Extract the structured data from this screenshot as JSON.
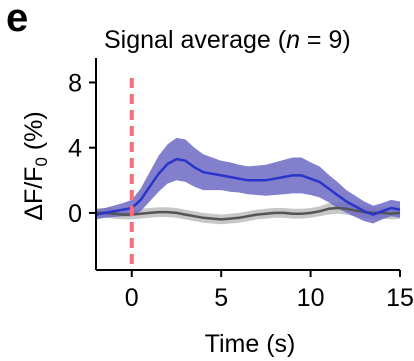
{
  "panel_label": "e",
  "title": {
    "prefix": "Signal average (",
    "n_symbol": "n",
    "suffix": " = 9)"
  },
  "chart_data": {
    "type": "line",
    "title": "Signal average (n = 9)",
    "xlabel": "Time (s)",
    "ylabel": "ΔF/F0 (%)",
    "ylabel_parts": {
      "delta": "ΔF/F",
      "sub": "0",
      "unit": " (%)"
    },
    "xlim": [
      -2,
      15
    ],
    "ylim": [
      -3.5,
      9.5
    ],
    "x_ticks": [
      0,
      5,
      10,
      15
    ],
    "x_tick_labels": [
      "0",
      "5",
      "10",
      "15"
    ],
    "y_ticks": [
      0,
      4,
      8
    ],
    "y_tick_labels": [
      "0",
      "4",
      "8"
    ],
    "grid": false,
    "legend": "none",
    "stimulus_line": {
      "x": 0,
      "color": "#ff6b7a",
      "style": "dashed"
    },
    "series": [
      {
        "color": "#2a34c8",
        "band_color": "#6c68c4",
        "x": [
          -2,
          -1.5,
          -1,
          -0.5,
          0,
          0.5,
          1,
          1.5,
          2,
          2.5,
          3,
          3.5,
          4,
          4.5,
          5,
          5.5,
          6,
          6.5,
          7,
          7.5,
          8,
          8.5,
          9,
          9.5,
          10,
          10.5,
          11,
          11.5,
          12,
          12.5,
          13,
          13.5,
          14,
          14.5,
          15
        ],
        "y": [
          -0.1,
          0.0,
          0.1,
          0.2,
          0.3,
          0.8,
          1.6,
          2.4,
          3.0,
          3.3,
          3.2,
          2.8,
          2.5,
          2.4,
          2.3,
          2.2,
          2.1,
          2.0,
          2.0,
          2.0,
          2.1,
          2.2,
          2.3,
          2.3,
          2.1,
          1.9,
          1.5,
          1.1,
          0.7,
          0.4,
          0.1,
          -0.1,
          0.1,
          0.3,
          0.2
        ],
        "err": [
          0.3,
          0.3,
          0.35,
          0.4,
          0.5,
          0.7,
          0.9,
          1.1,
          1.2,
          1.3,
          1.3,
          1.2,
          1.1,
          1.0,
          0.9,
          0.9,
          0.85,
          0.85,
          0.9,
          0.95,
          1.0,
          1.05,
          1.1,
          1.1,
          1.0,
          0.95,
          0.85,
          0.8,
          0.7,
          0.65,
          0.6,
          0.55,
          0.5,
          0.5,
          0.5
        ]
      },
      {
        "color": "#555555",
        "band_color": "#bdbdbd",
        "x": [
          -2,
          -1.5,
          -1,
          -0.5,
          0,
          0.5,
          1,
          1.5,
          2,
          2.5,
          3,
          3.5,
          4,
          4.5,
          5,
          5.5,
          6,
          6.5,
          7,
          7.5,
          8,
          8.5,
          9,
          9.5,
          10,
          10.5,
          11,
          11.5,
          12,
          12.5,
          13,
          13.5,
          14,
          14.5,
          15
        ],
        "y": [
          0.0,
          0.0,
          -0.05,
          -0.1,
          -0.1,
          -0.05,
          0.0,
          0.05,
          0.05,
          0.0,
          -0.1,
          -0.2,
          -0.3,
          -0.35,
          -0.4,
          -0.35,
          -0.3,
          -0.2,
          -0.1,
          -0.05,
          0.0,
          0.0,
          -0.05,
          -0.05,
          0.0,
          0.1,
          0.25,
          0.3,
          0.25,
          0.15,
          0.05,
          0.0,
          0.0,
          -0.05,
          0.0
        ],
        "err": [
          0.3,
          0.3,
          0.3,
          0.3,
          0.3,
          0.3,
          0.3,
          0.3,
          0.3,
          0.3,
          0.3,
          0.3,
          0.3,
          0.3,
          0.3,
          0.3,
          0.3,
          0.3,
          0.3,
          0.3,
          0.3,
          0.3,
          0.3,
          0.3,
          0.3,
          0.3,
          0.35,
          0.35,
          0.35,
          0.35,
          0.35,
          0.35,
          0.35,
          0.35,
          0.35
        ]
      }
    ]
  }
}
